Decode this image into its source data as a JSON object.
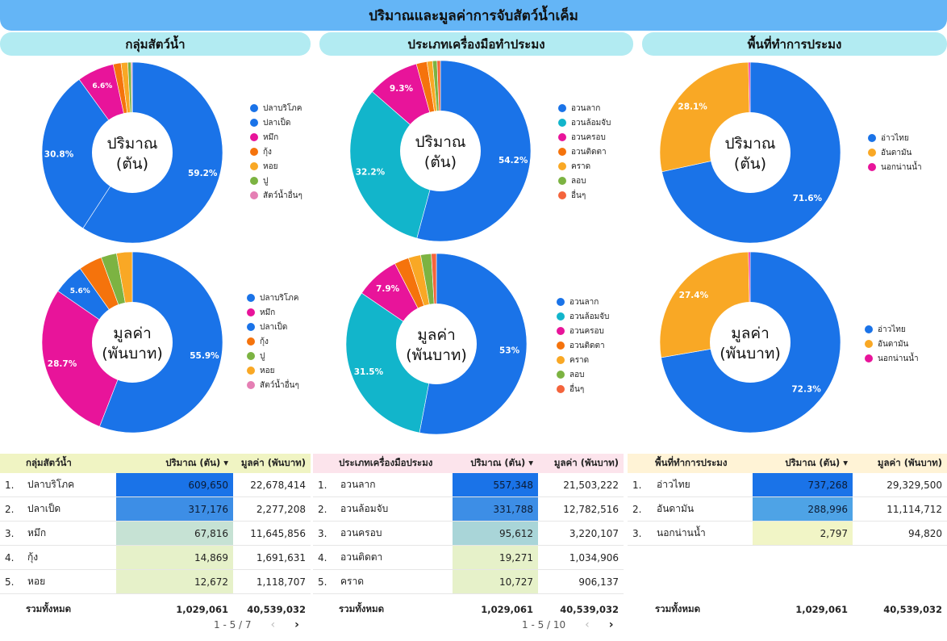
{
  "title": "ปริมาณและมูลค่าการจับสัตว์น้ำเค็ม",
  "sections": [
    "กลุ่มสัตว์น้ำ",
    "ประเภทเครื่องมือทำประมง",
    "พื้นที่ทำการประมง"
  ],
  "chart_data": [
    {
      "type": "pie",
      "center_label": "ปริมาณ\n(ตัน)",
      "categories": [
        "ปลาบริโภค",
        "ปลาเป็ด",
        "หมึก",
        "กุ้ง",
        "หอย",
        "ปู",
        "สัตว์น้ำอื่นๆ"
      ],
      "values": [
        59.2,
        30.8,
        6.6,
        1.4,
        1.2,
        0.6,
        0.2
      ],
      "colors": [
        "#1a73e8",
        "#1a73e8",
        "#e8149a",
        "#f5730c",
        "#f9a825",
        "#7cb342",
        "#e57fb4"
      ],
      "labels": [
        "59.2%",
        "30.8%",
        "6.6%",
        "",
        "",
        "",
        ""
      ]
    },
    {
      "type": "pie",
      "center_label": "ปริมาณ\n(ตัน)",
      "categories": [
        "อวนลาก",
        "อวนล้อมจับ",
        "อวนครอบ",
        "อวนติดตา",
        "คราด",
        "ลอบ",
        "อื่นๆ"
      ],
      "values": [
        54.2,
        32.2,
        9.3,
        1.9,
        1.0,
        0.8,
        0.6
      ],
      "colors": [
        "#1a73e8",
        "#12b5cb",
        "#e8149a",
        "#f5730c",
        "#f9a825",
        "#7cb342",
        "#f4643c"
      ],
      "labels": [
        "54.2%",
        "32.2%",
        "9.3%",
        "",
        "",
        "",
        ""
      ]
    },
    {
      "type": "pie",
      "center_label": "ปริมาณ\n(ตัน)",
      "categories": [
        "อ่าวไทย",
        "อันดามัน",
        "นอกน่านน้ำ"
      ],
      "values": [
        71.6,
        28.1,
        0.3
      ],
      "colors": [
        "#1a73e8",
        "#f9a825",
        "#e8149a"
      ],
      "labels": [
        "71.6%",
        "28.1%",
        ""
      ]
    },
    {
      "type": "pie",
      "center_label": "มูลค่า\n(พันบาท)",
      "categories": [
        "ปลาบริโภค",
        "หมึก",
        "ปลาเป็ด",
        "กุ้ง",
        "ปู",
        "หอย",
        "สัตว์น้ำอื่นๆ"
      ],
      "values": [
        55.9,
        28.7,
        5.6,
        4.2,
        2.8,
        2.8,
        0.0
      ],
      "colors": [
        "#1a73e8",
        "#e8149a",
        "#1a73e8",
        "#f5730c",
        "#7cb342",
        "#f9a825",
        "#e57fb4"
      ],
      "labels": [
        "55.9%",
        "28.7%",
        "5.6%",
        "",
        "",
        "",
        ""
      ]
    },
    {
      "type": "pie",
      "center_label": "มูลค่า\n(พันบาท)",
      "categories": [
        "อวนลาก",
        "อวนล้อมจับ",
        "อวนครอบ",
        "อวนติดตา",
        "คราด",
        "ลอบ",
        "อื่นๆ"
      ],
      "values": [
        53,
        31.5,
        7.9,
        2.6,
        2.2,
        1.9,
        0.9
      ],
      "colors": [
        "#1a73e8",
        "#12b5cb",
        "#e8149a",
        "#f5730c",
        "#f9a825",
        "#7cb342",
        "#f4643c"
      ],
      "labels": [
        "53%",
        "31.5%",
        "7.9%",
        "",
        "",
        "",
        ""
      ]
    },
    {
      "type": "pie",
      "center_label": "มูลค่า\n(พันบาท)",
      "categories": [
        "อ่าวไทย",
        "อันดามัน",
        "นอกน่านน้ำ"
      ],
      "values": [
        72.3,
        27.4,
        0.3
      ],
      "colors": [
        "#1a73e8",
        "#f9a825",
        "#e8149a"
      ],
      "labels": [
        "72.3%",
        "27.4%",
        ""
      ]
    }
  ],
  "tables": [
    {
      "header_color": "#f0f4c3",
      "headers": [
        "กลุ่มสัตว์น้ำ",
        "ปริมาณ (ตัน)",
        "มูลค่า (พันบาท)"
      ],
      "sort_icon": "▾",
      "rows": [
        {
          "idx": "1.",
          "name": "ปลาบริโภค",
          "qty": "609,650",
          "val": "22,678,414",
          "color": "#1a73e8"
        },
        {
          "idx": "2.",
          "name": "ปลาเป็ด",
          "qty": "317,176",
          "val": "2,277,208",
          "color": "#3d8ee6"
        },
        {
          "idx": "3.",
          "name": "หมึก",
          "qty": "67,816",
          "val": "11,645,856",
          "color": "#c6e2d4"
        },
        {
          "idx": "4.",
          "name": "กุ้ง",
          "qty": "14,869",
          "val": "1,691,631",
          "color": "#e6f1c9"
        },
        {
          "idx": "5.",
          "name": "หอย",
          "qty": "12,672",
          "val": "1,118,707",
          "color": "#e6f1c9"
        }
      ],
      "total_label": "รวมทั้งหมด",
      "total_qty": "1,029,061",
      "total_val": "40,539,032",
      "pager": "1 - 5 / 7"
    },
    {
      "header_color": "#fce4ec",
      "headers": [
        "ประเภทเครื่องมือประมง",
        "ปริมาณ (ตัน)",
        "มูลค่า (พันบาท)"
      ],
      "sort_icon": "▾",
      "rows": [
        {
          "idx": "1.",
          "name": "อวนลาก",
          "qty": "557,348",
          "val": "21,503,222",
          "color": "#1a73e8"
        },
        {
          "idx": "2.",
          "name": "อวนล้อมจับ",
          "qty": "331,788",
          "val": "12,782,516",
          "color": "#3d8ee6"
        },
        {
          "idx": "3.",
          "name": "อวนครอบ",
          "qty": "95,612",
          "val": "3,220,107",
          "color": "#a9d5d8"
        },
        {
          "idx": "4.",
          "name": "อวนติดตา",
          "qty": "19,271",
          "val": "1,034,906",
          "color": "#e6f1c9"
        },
        {
          "idx": "5.",
          "name": "คราด",
          "qty": "10,727",
          "val": "906,137",
          "color": "#e6f1c9"
        }
      ],
      "total_label": "รวมทั้งหมด",
      "total_qty": "1,029,061",
      "total_val": "40,539,032",
      "pager": "1 - 5 / 10"
    },
    {
      "header_color": "#fff3d6",
      "headers": [
        "พื้นที่ทำการประมง",
        "ปริมาณ (ตัน)",
        "มูลค่า (พันบาท)"
      ],
      "sort_icon": "▾",
      "rows": [
        {
          "idx": "1.",
          "name": "อ่าวไทย",
          "qty": "737,268",
          "val": "29,329,500",
          "color": "#1a73e8"
        },
        {
          "idx": "2.",
          "name": "อันดามัน",
          "qty": "288,996",
          "val": "11,114,712",
          "color": "#4ea3e6"
        },
        {
          "idx": "3.",
          "name": "นอกน่านน้ำ",
          "qty": "2,797",
          "val": "94,820",
          "color": "#f1f5c6"
        }
      ],
      "total_label": "รวมทั้งหมด",
      "total_qty": "1,029,061",
      "total_val": "40,539,032",
      "pager": ""
    }
  ],
  "pager_icons": {
    "prev": "‹",
    "next": "›"
  }
}
